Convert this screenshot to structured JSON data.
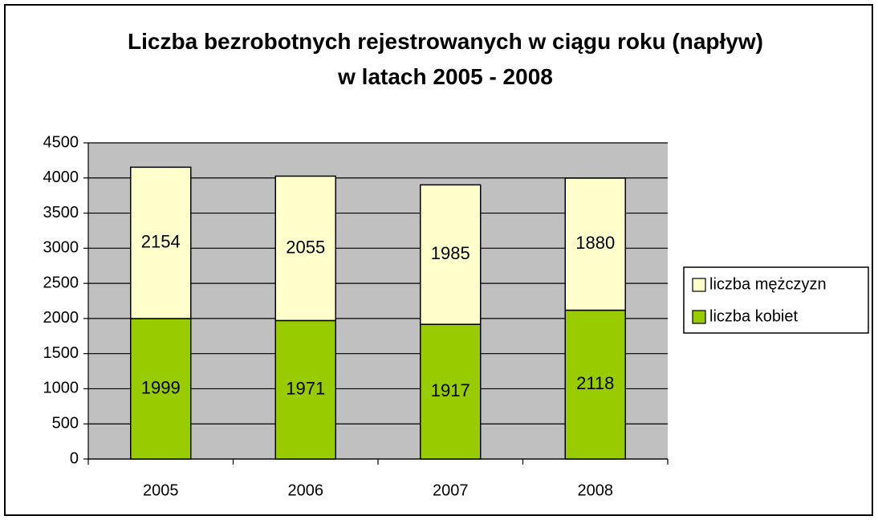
{
  "chart_data": {
    "type": "stacked_bar",
    "title": "Liczba bezrobotnych rejestrowanych w ciągu roku (napływ) w latach 2005 - 2008",
    "categories": [
      "2005",
      "2006",
      "2007",
      "2008"
    ],
    "series": [
      {
        "name": "liczba kobiet",
        "color": "#99cc00",
        "values": [
          1999,
          1971,
          1917,
          2118
        ]
      },
      {
        "name": "liczba mężczyzn",
        "color": "#ffffcc",
        "values": [
          2154,
          2055,
          1985,
          1880
        ]
      }
    ],
    "ylim": [
      0,
      4500
    ],
    "yticks": [
      0,
      500,
      1000,
      1500,
      2000,
      2500,
      3000,
      3500,
      4000,
      4500
    ],
    "grid": true,
    "legend": "right"
  }
}
